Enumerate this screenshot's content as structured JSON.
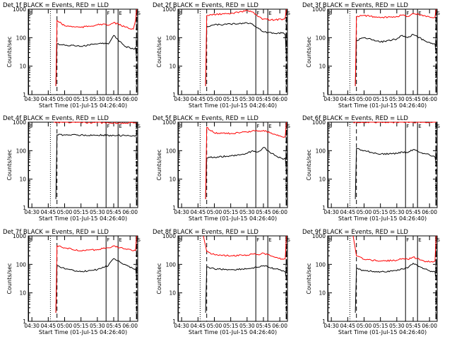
{
  "figure": {
    "type": "line",
    "colors": {
      "events": "#000000",
      "lld": "#ff0000",
      "axes": "#000000",
      "background": "#ffffff"
    }
  },
  "chart_data": [
    {
      "type": "line",
      "title": "Det 1f BLACK = Events, RED = LLD",
      "xlabel": "Start Time (01-Jul-15 04:26:40)",
      "ylabel": "Counts/sec",
      "x_ticks": [
        "04:30",
        "04:45",
        "05:00",
        "05:15",
        "05:30",
        "05:45",
        "06:00"
      ],
      "y_ticks": [
        "1",
        "10",
        "100",
        "1000"
      ],
      "ylim": [
        1,
        1000
      ],
      "yscale": "log",
      "series": [
        {
          "name": "Events",
          "x": [
            "04:52",
            "04:53",
            "05:00",
            "05:15",
            "05:30",
            "05:35",
            "05:40",
            "05:45",
            "05:55",
            "06:03",
            "06:05",
            "06:06"
          ],
          "values": [
            2,
            60,
            55,
            50,
            60,
            65,
            60,
            120,
            50,
            40,
            45,
            18
          ]
        },
        {
          "name": "LLD",
          "x": [
            "04:52",
            "04:53",
            "05:00",
            "05:15",
            "05:30",
            "05:35",
            "05:40",
            "05:45",
            "05:55",
            "06:03",
            "06:05",
            "06:06"
          ],
          "values": [
            2,
            400,
            260,
            230,
            280,
            300,
            270,
            340,
            240,
            200,
            400,
            1000
          ]
        }
      ],
      "markers": [
        {
          "label": "S",
          "time": "04:27"
        },
        {
          "label": "",
          "time": "04:47"
        },
        {
          "label": "",
          "time": "04:53"
        },
        {
          "label": "F",
          "time": "05:38"
        },
        {
          "label": "E",
          "time": "05:49"
        },
        {
          "label": "S",
          "time": "06:06"
        }
      ]
    },
    {
      "type": "line",
      "title": "Det 2f BLACK = Events, RED = LLD",
      "xlabel": "Start Time (01-Jul-15 04:26:40)",
      "ylabel": "Counts/sec",
      "x_ticks": [
        "04:30",
        "04:45",
        "05:00",
        "05:15",
        "05:30",
        "05:45",
        "06:00"
      ],
      "y_ticks": [
        "1",
        "10",
        "100",
        "1000"
      ],
      "ylim": [
        1,
        1000
      ],
      "yscale": "log",
      "series": [
        {
          "name": "Events",
          "x": [
            "04:52",
            "04:53",
            "05:00",
            "05:15",
            "05:30",
            "05:35",
            "05:40",
            "05:45",
            "05:55",
            "06:03",
            "06:05",
            "06:06"
          ],
          "values": [
            2,
            250,
            280,
            300,
            330,
            300,
            220,
            160,
            140,
            150,
            130,
            20
          ]
        },
        {
          "name": "LLD",
          "x": [
            "04:52",
            "04:53",
            "05:00",
            "05:15",
            "05:30",
            "05:35",
            "05:40",
            "05:45",
            "05:55",
            "06:03",
            "06:05",
            "06:06"
          ],
          "values": [
            2,
            600,
            650,
            700,
            900,
            800,
            550,
            450,
            420,
            450,
            500,
            1000
          ]
        }
      ],
      "markers": [
        {
          "label": "S",
          "time": "04:27"
        },
        {
          "label": "",
          "time": "04:47"
        },
        {
          "label": "",
          "time": "04:53"
        },
        {
          "label": "F",
          "time": "05:38"
        },
        {
          "label": "E",
          "time": "05:49"
        },
        {
          "label": "S",
          "time": "06:06"
        }
      ]
    },
    {
      "type": "line",
      "title": "Det 3f BLACK = Events, RED = LLD",
      "xlabel": "Start Time (01-Jul-15 04:26:40)",
      "ylabel": "Counts/sec",
      "x_ticks": [
        "04:30",
        "04:45",
        "05:00",
        "05:15",
        "05:30",
        "05:45",
        "06:00"
      ],
      "y_ticks": [
        "1",
        "10",
        "100",
        "1000"
      ],
      "ylim": [
        1,
        1000
      ],
      "yscale": "log",
      "series": [
        {
          "name": "Events",
          "x": [
            "04:52",
            "04:53",
            "05:00",
            "05:15",
            "05:30",
            "05:35",
            "05:40",
            "05:45",
            "05:55",
            "06:03",
            "06:05",
            "06:06"
          ],
          "values": [
            2,
            80,
            100,
            70,
            90,
            120,
            100,
            130,
            80,
            60,
            60,
            30
          ]
        },
        {
          "name": "LLD",
          "x": [
            "04:52",
            "04:53",
            "05:00",
            "05:15",
            "05:30",
            "05:35",
            "05:40",
            "05:45",
            "05:55",
            "06:03",
            "06:05",
            "06:06"
          ],
          "values": [
            2,
            550,
            600,
            500,
            560,
            620,
            560,
            700,
            600,
            500,
            520,
            1000
          ]
        }
      ],
      "markers": [
        {
          "label": "S",
          "time": "04:27"
        },
        {
          "label": "",
          "time": "04:47"
        },
        {
          "label": "",
          "time": "04:53"
        },
        {
          "label": "F",
          "time": "05:38"
        },
        {
          "label": "E",
          "time": "05:49"
        },
        {
          "label": "S",
          "time": "06:06"
        }
      ]
    },
    {
      "type": "line",
      "title": "Det 4f BLACK = Events, RED = LLD",
      "xlabel": "Start Time (01-Jul-15 04:26:40)",
      "ylabel": "Counts/sec",
      "x_ticks": [
        "04:30",
        "04:45",
        "05:00",
        "05:15",
        "05:30",
        "05:45",
        "06:00"
      ],
      "y_ticks": [
        "1",
        "10",
        "100",
        "1000"
      ],
      "ylim": [
        1,
        1000
      ],
      "yscale": "log",
      "series": [
        {
          "name": "Events",
          "x": [
            "04:52",
            "04:53",
            "05:00",
            "05:15",
            "05:30",
            "05:35",
            "05:40",
            "05:45",
            "05:55",
            "06:03",
            "06:05",
            "06:06"
          ],
          "values": [
            2,
            360,
            360,
            355,
            350,
            350,
            345,
            345,
            340,
            340,
            340,
            340
          ]
        },
        {
          "name": "LLD",
          "x": [
            "04:50",
            "04:53",
            "05:00",
            "05:15",
            "05:30",
            "05:35",
            "05:40",
            "05:45",
            "05:55",
            "06:03",
            "06:05",
            "06:06"
          ],
          "values": [
            1000,
            1000,
            990,
            980,
            970,
            960,
            950,
            950,
            940,
            940,
            940,
            940
          ]
        }
      ],
      "markers": [
        {
          "label": "S",
          "time": "04:27"
        },
        {
          "label": "",
          "time": "04:47"
        },
        {
          "label": "",
          "time": "04:53"
        },
        {
          "label": "F",
          "time": "05:38"
        },
        {
          "label": "E",
          "time": "05:49"
        },
        {
          "label": "S",
          "time": "06:06"
        }
      ]
    },
    {
      "type": "line",
      "title": "Det 5f BLACK = Events, RED = LLD",
      "xlabel": "Start Time (01-Jul-15 04:26:40)",
      "ylabel": "Counts/sec",
      "x_ticks": [
        "04:30",
        "04:45",
        "05:00",
        "05:15",
        "05:30",
        "05:45",
        "06:00"
      ],
      "y_ticks": [
        "1",
        "10",
        "100",
        "1000"
      ],
      "ylim": [
        1,
        1000
      ],
      "yscale": "log",
      "series": [
        {
          "name": "Events",
          "x": [
            "04:52",
            "04:53",
            "05:00",
            "05:15",
            "05:30",
            "05:35",
            "05:40",
            "05:45",
            "05:55",
            "06:03",
            "06:05",
            "06:06"
          ],
          "values": [
            2,
            55,
            60,
            65,
            80,
            100,
            90,
            130,
            70,
            50,
            55,
            20
          ]
        },
        {
          "name": "LLD",
          "x": [
            "04:52",
            "04:53",
            "05:00",
            "05:15",
            "05:30",
            "05:35",
            "05:40",
            "05:45",
            "05:55",
            "06:03",
            "06:05",
            "06:06"
          ],
          "values": [
            2,
            650,
            420,
            400,
            450,
            500,
            480,
            520,
            380,
            300,
            320,
            1000
          ]
        }
      ],
      "markers": [
        {
          "label": "S",
          "time": "04:27"
        },
        {
          "label": "",
          "time": "04:47"
        },
        {
          "label": "",
          "time": "04:53"
        },
        {
          "label": "F",
          "time": "05:38"
        },
        {
          "label": "E",
          "time": "05:49"
        },
        {
          "label": "S",
          "time": "06:06"
        }
      ]
    },
    {
      "type": "line",
      "title": "Det 6f BLACK = Events, RED = LLD",
      "xlabel": "Start Time (01-Jul-15 04:26:40)",
      "ylabel": "Counts/sec",
      "x_ticks": [
        "04:30",
        "04:45",
        "05:00",
        "05:15",
        "05:30",
        "05:45",
        "06:00"
      ],
      "y_ticks": [
        "1",
        "10",
        "100",
        "1000"
      ],
      "ylim": [
        1,
        1000
      ],
      "yscale": "log",
      "series": [
        {
          "name": "Events",
          "x": [
            "04:52",
            "04:53",
            "05:00",
            "05:15",
            "05:30",
            "05:35",
            "05:40",
            "05:45",
            "05:55",
            "06:03",
            "06:05",
            "06:06"
          ],
          "values": [
            2,
            120,
            100,
            75,
            80,
            90,
            85,
            110,
            80,
            65,
            60,
            35
          ]
        },
        {
          "name": "LLD",
          "x": [
            "04:50",
            "04:53",
            "05:00",
            "05:15",
            "05:30",
            "05:35",
            "05:40",
            "05:45",
            "05:55",
            "06:03",
            "06:05",
            "06:06"
          ],
          "values": [
            1000,
            1000,
            1000,
            1000,
            1000,
            1000,
            1000,
            1000,
            1000,
            1000,
            1000,
            1000
          ]
        }
      ],
      "markers": [
        {
          "label": "S",
          "time": "04:27"
        },
        {
          "label": "",
          "time": "04:47"
        },
        {
          "label": "",
          "time": "04:53"
        },
        {
          "label": "F",
          "time": "05:38"
        },
        {
          "label": "E",
          "time": "05:49"
        },
        {
          "label": "S",
          "time": "06:06"
        }
      ]
    },
    {
      "type": "line",
      "title": "Det 7f BLACK = Events, RED = LLD",
      "xlabel": "Start Time (01-Jul-15 04:26:40)",
      "ylabel": "Counts/sec",
      "x_ticks": [
        "04:30",
        "04:45",
        "05:00",
        "05:15",
        "05:30",
        "05:45",
        "06:00"
      ],
      "y_ticks": [
        "1",
        "10",
        "100",
        "1000"
      ],
      "ylim": [
        1,
        1000
      ],
      "yscale": "log",
      "series": [
        {
          "name": "Events",
          "x": [
            "04:52",
            "04:53",
            "05:00",
            "05:15",
            "05:30",
            "05:35",
            "05:40",
            "05:45",
            "05:55",
            "06:03",
            "06:05",
            "06:06"
          ],
          "values": [
            2,
            90,
            70,
            55,
            65,
            80,
            90,
            160,
            100,
            70,
            70,
            40
          ]
        },
        {
          "name": "LLD",
          "x": [
            "04:52",
            "04:53",
            "05:00",
            "05:15",
            "05:30",
            "05:35",
            "05:40",
            "05:45",
            "05:55",
            "06:03",
            "06:05",
            "06:06"
          ],
          "values": [
            2,
            450,
            380,
            300,
            330,
            360,
            380,
            450,
            350,
            300,
            310,
            1000
          ]
        }
      ],
      "markers": [
        {
          "label": "S",
          "time": "04:27"
        },
        {
          "label": "",
          "time": "04:47"
        },
        {
          "label": "",
          "time": "04:53"
        },
        {
          "label": "F",
          "time": "05:38"
        },
        {
          "label": "E",
          "time": "05:49"
        },
        {
          "label": "S",
          "time": "06:06"
        }
      ]
    },
    {
      "type": "line",
      "title": "Det 8f BLACK = Events, RED = LLD",
      "xlabel": "Start Time (01-Jul-15 04:26:40)",
      "ylabel": "Counts/sec",
      "x_ticks": [
        "04:30",
        "04:45",
        "05:00",
        "05:15",
        "05:30",
        "05:45",
        "06:00"
      ],
      "y_ticks": [
        "1",
        "10",
        "100",
        "1000"
      ],
      "ylim": [
        1,
        1000
      ],
      "yscale": "log",
      "series": [
        {
          "name": "Events",
          "x": [
            "04:52",
            "04:53",
            "05:00",
            "05:15",
            "05:30",
            "05:35",
            "05:40",
            "05:45",
            "05:55",
            "06:03",
            "06:05",
            "06:06"
          ],
          "values": [
            2,
            80,
            70,
            65,
            70,
            75,
            80,
            90,
            70,
            60,
            55,
            30
          ]
        },
        {
          "name": "LLD",
          "x": [
            "04:50",
            "04:53",
            "05:00",
            "05:15",
            "05:30",
            "05:35",
            "05:40",
            "05:45",
            "05:55",
            "06:03",
            "06:05",
            "06:06"
          ],
          "values": [
            1000,
            280,
            220,
            200,
            210,
            230,
            220,
            250,
            180,
            150,
            160,
            1000
          ]
        }
      ],
      "markers": [
        {
          "label": "S",
          "time": "04:27"
        },
        {
          "label": "",
          "time": "04:47"
        },
        {
          "label": "",
          "time": "04:53"
        },
        {
          "label": "F",
          "time": "05:38"
        },
        {
          "label": "E",
          "time": "05:49"
        },
        {
          "label": "S",
          "time": "06:06"
        }
      ]
    },
    {
      "type": "line",
      "title": "Det 9f BLACK = Events, RED = LLD",
      "xlabel": "Start Time (01-Jul-15 04:26:40)",
      "ylabel": "Counts/sec",
      "x_ticks": [
        "04:30",
        "04:45",
        "05:00",
        "05:15",
        "05:30",
        "05:45",
        "06:00"
      ],
      "y_ticks": [
        "1",
        "10",
        "100",
        "1000"
      ],
      "ylim": [
        1,
        1000
      ],
      "yscale": "log",
      "series": [
        {
          "name": "Events",
          "x": [
            "04:52",
            "04:53",
            "05:00",
            "05:15",
            "05:30",
            "05:35",
            "05:40",
            "05:45",
            "05:55",
            "06:03",
            "06:05",
            "06:06"
          ],
          "values": [
            2,
            70,
            60,
            55,
            60,
            70,
            75,
            110,
            70,
            55,
            55,
            30
          ]
        },
        {
          "name": "LLD",
          "x": [
            "04:50",
            "04:53",
            "05:00",
            "05:15",
            "05:30",
            "05:35",
            "05:40",
            "05:45",
            "05:55",
            "06:03",
            "06:05",
            "06:06"
          ],
          "values": [
            1000,
            200,
            150,
            130,
            140,
            160,
            150,
            180,
            130,
            120,
            130,
            1000
          ]
        }
      ],
      "markers": [
        {
          "label": "S",
          "time": "04:27"
        },
        {
          "label": "",
          "time": "04:47"
        },
        {
          "label": "",
          "time": "04:53"
        },
        {
          "label": "F",
          "time": "05:38"
        },
        {
          "label": "E",
          "time": "05:49"
        },
        {
          "label": "S",
          "time": "06:06"
        }
      ]
    }
  ]
}
